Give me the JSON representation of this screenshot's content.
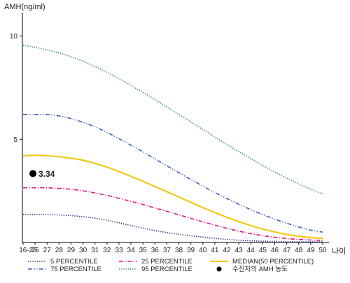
{
  "chart_data": {
    "type": "line",
    "ylabel": "AMH(ng/ml)",
    "xlabel": "나이",
    "ylim": [
      0,
      11
    ],
    "yticks": [
      5,
      10
    ],
    "categories": [
      "16-25",
      "26",
      "27",
      "28",
      "29",
      "30",
      "31",
      "32",
      "33",
      "34",
      "35",
      "36",
      "37",
      "38",
      "39",
      "40",
      "41",
      "42",
      "43",
      "44",
      "45",
      "46",
      "47",
      "48",
      "49",
      "50"
    ],
    "grid": false,
    "legend_position": "bottom",
    "series": [
      {
        "name": "5 PERCENTILE",
        "color": "#1a237e",
        "dash": "dotted",
        "values": [
          1.35,
          1.35,
          1.35,
          1.33,
          1.3,
          1.25,
          1.18,
          1.08,
          0.95,
          0.82,
          0.7,
          0.58,
          0.48,
          0.4,
          0.32,
          0.26,
          0.2,
          0.15,
          0.11,
          0.08,
          0.06,
          0.05,
          0.04,
          0.03,
          0.03,
          0.03
        ]
      },
      {
        "name": "25 PERCENTILE",
        "color": "#e0177a",
        "dash": "dashdot",
        "values": [
          2.65,
          2.65,
          2.65,
          2.62,
          2.58,
          2.5,
          2.4,
          2.28,
          2.14,
          1.99,
          1.84,
          1.67,
          1.51,
          1.34,
          1.17,
          1.0,
          0.84,
          0.69,
          0.55,
          0.43,
          0.33,
          0.25,
          0.19,
          0.15,
          0.12,
          0.1
        ]
      },
      {
        "name": "MEDIAN(50 PERCENTILE)",
        "color": "#f2c500",
        "dash": "solid",
        "values": [
          4.2,
          4.22,
          4.2,
          4.15,
          4.08,
          3.98,
          3.83,
          3.65,
          3.43,
          3.2,
          2.96,
          2.71,
          2.46,
          2.2,
          1.94,
          1.69,
          1.45,
          1.22,
          1.01,
          0.82,
          0.65,
          0.51,
          0.39,
          0.3,
          0.24,
          0.2
        ]
      },
      {
        "name": "75 PERCENTILE",
        "color": "#3c5fc4",
        "dash": "dashdotdot",
        "values": [
          6.2,
          6.2,
          6.2,
          6.13,
          6.0,
          5.82,
          5.6,
          5.33,
          5.03,
          4.71,
          4.39,
          4.05,
          3.71,
          3.38,
          3.05,
          2.73,
          2.42,
          2.13,
          1.85,
          1.59,
          1.35,
          1.13,
          0.93,
          0.75,
          0.6,
          0.5
        ]
      },
      {
        "name": "95 PERCENTILE",
        "color": "#1e8a4a",
        "dash": "dotted",
        "values": [
          9.55,
          9.45,
          9.33,
          9.18,
          9.0,
          8.78,
          8.52,
          8.24,
          7.93,
          7.61,
          7.27,
          6.92,
          6.56,
          6.2,
          5.84,
          5.47,
          5.11,
          4.75,
          4.4,
          4.06,
          3.73,
          3.42,
          3.12,
          2.84,
          2.58,
          2.35
        ]
      }
    ],
    "patient_point": {
      "name": "수진자의 AMH 농도",
      "category": "16-25",
      "value": 3.34,
      "label": "3.34",
      "color": "#000000"
    }
  }
}
